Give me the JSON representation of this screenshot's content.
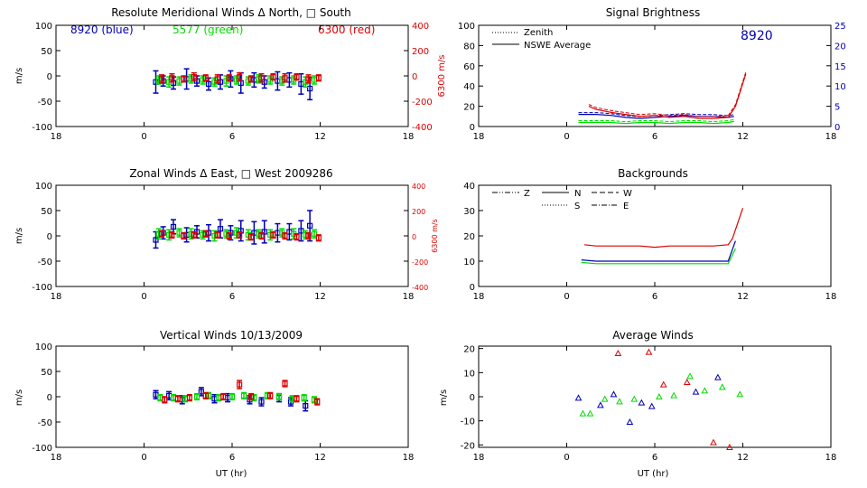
{
  "colors": {
    "blue": "#0000b4",
    "green": "#00dc00",
    "red": "#dc0000",
    "black": "#000000"
  },
  "chart_data": [
    {
      "type": "scatter",
      "title": "Resolute Meridional Winds Δ North, □ South",
      "xlabel": "",
      "ylabel": "m/s",
      "xlim": [
        -6,
        18
      ],
      "x_tick_labels": [
        "18",
        "0",
        "6",
        "12",
        "18"
      ],
      "ylim": [
        -100,
        100
      ],
      "y_ticks": [
        100,
        50,
        0,
        -50,
        -100
      ],
      "y2_ticks": [
        400,
        200,
        0,
        -200,
        -400
      ],
      "y2label": "6300 m/s",
      "legend_labels": [
        "8920 (blue)",
        "5577 (green)",
        "6300 (red)"
      ],
      "series": [
        {
          "name": "8920",
          "color": "blue",
          "x": [
            0.8,
            1.3,
            2.0,
            2.9,
            3.6,
            4.4,
            5.2,
            5.9,
            6.6,
            7.5,
            8.2,
            9.1,
            9.9,
            10.7,
            11.3
          ],
          "y": [
            -12,
            -10,
            -14,
            -6,
            -10,
            -16,
            -12,
            -6,
            -14,
            -8,
            -12,
            -10,
            -8,
            -16,
            -25
          ],
          "err": [
            22,
            10,
            12,
            20,
            10,
            12,
            14,
            16,
            20,
            14,
            12,
            18,
            14,
            20,
            22
          ]
        },
        {
          "name": "5577",
          "color": "green",
          "x": [
            1.0,
            1.7,
            2.4,
            3.2,
            4.0,
            4.8,
            5.6,
            6.3,
            7.1,
            7.8,
            8.6,
            9.4,
            10.2,
            11.0,
            11.6
          ],
          "y": [
            -8,
            -12,
            -10,
            -6,
            -8,
            -12,
            -10,
            -8,
            -10,
            -6,
            -8,
            -10,
            -8,
            -12,
            -8
          ],
          "err": [
            8,
            10,
            8,
            8,
            8,
            8,
            10,
            8,
            8,
            8,
            8,
            8,
            8,
            10,
            8
          ]
        },
        {
          "name": "6300",
          "color": "red",
          "x": [
            1.2,
            1.9,
            2.7,
            3.4,
            4.2,
            5.0,
            5.8,
            6.5,
            7.3,
            8.0,
            8.8,
            9.6,
            10.4,
            11.2,
            11.9
          ],
          "y": [
            -6,
            -4,
            -6,
            -2,
            -4,
            -6,
            -4,
            -2,
            -6,
            -4,
            -2,
            -4,
            -2,
            -6,
            -4
          ],
          "err": [
            8,
            8,
            6,
            8,
            6,
            8,
            6,
            8,
            6,
            8,
            6,
            8,
            6,
            8,
            6
          ]
        }
      ]
    },
    {
      "type": "line",
      "title": "Signal Brightness",
      "xlabel": "",
      "ylabel": "",
      "xlim": [
        -6,
        18
      ],
      "x_tick_labels": [
        "18",
        "0",
        "6",
        "12",
        "18"
      ],
      "ylim": [
        0,
        100
      ],
      "y_ticks": [
        100,
        80,
        60,
        40,
        20,
        0
      ],
      "y2_ticks": [
        25,
        20,
        15,
        10,
        5,
        0
      ],
      "legend": [
        "Zenith",
        "NSWE Average"
      ],
      "annotation": "8920",
      "series": [
        {
          "name": "8920",
          "color": "blue",
          "x": [
            0.8,
            2,
            3,
            4,
            5,
            6,
            7,
            8,
            9,
            10,
            11,
            11.4
          ],
          "y": [
            12,
            12,
            11,
            9,
            8,
            9,
            10,
            11,
            10,
            10,
            9,
            10
          ]
        },
        {
          "name": "5577",
          "color": "green",
          "x": [
            0.8,
            2,
            3,
            4,
            5,
            6,
            7,
            8,
            9,
            10,
            11,
            11.4
          ],
          "y": [
            4,
            4,
            4,
            3,
            4,
            4,
            3,
            4,
            4,
            3,
            4,
            5
          ]
        },
        {
          "name": "6300",
          "color": "red",
          "x": [
            1.5,
            2,
            3,
            4,
            5,
            6,
            7,
            8,
            9,
            10,
            11,
            11.5,
            12.2
          ],
          "y": [
            20,
            17,
            14,
            12,
            10,
            11,
            9,
            10,
            8,
            8,
            9,
            20,
            52
          ]
        }
      ]
    },
    {
      "type": "scatter",
      "title": "Zonal Winds Δ East, □ West 2009286",
      "xlabel": "",
      "ylabel": "m/s",
      "xlim": [
        -6,
        18
      ],
      "x_tick_labels": [
        "18",
        "0",
        "6",
        "12",
        "18"
      ],
      "ylim": [
        -100,
        100
      ],
      "y_ticks": [
        100,
        50,
        0,
        -50,
        -100
      ],
      "y2_ticks": [
        400,
        200,
        0,
        -200,
        -400
      ],
      "y2label": "6300 m/s",
      "series": [
        {
          "name": "8920",
          "color": "blue",
          "x": [
            0.8,
            1.3,
            2.0,
            2.9,
            3.6,
            4.4,
            5.2,
            5.9,
            6.6,
            7.5,
            8.2,
            9.1,
            9.9,
            10.7,
            11.3
          ],
          "y": [
            -8,
            6,
            18,
            2,
            8,
            6,
            14,
            6,
            10,
            6,
            8,
            6,
            8,
            10,
            20
          ],
          "err": [
            16,
            12,
            14,
            14,
            12,
            16,
            18,
            14,
            20,
            22,
            22,
            18,
            16,
            20,
            30
          ]
        },
        {
          "name": "5577",
          "color": "green",
          "x": [
            1.0,
            1.7,
            2.4,
            3.2,
            4.0,
            4.8,
            5.6,
            6.3,
            7.1,
            7.8,
            8.6,
            9.4,
            10.2,
            11.0,
            11.6
          ],
          "y": [
            4,
            2,
            6,
            4,
            2,
            0,
            4,
            6,
            2,
            4,
            2,
            6,
            4,
            2,
            4
          ],
          "err": [
            10,
            10,
            8,
            10,
            8,
            10,
            8,
            10,
            10,
            8,
            10,
            8,
            10,
            8,
            8
          ]
        },
        {
          "name": "6300",
          "color": "red",
          "x": [
            1.2,
            1.9,
            2.7,
            3.4,
            4.2,
            5.0,
            5.8,
            6.5,
            7.3,
            8.0,
            8.8,
            9.6,
            10.4,
            11.2,
            11.9
          ],
          "y": [
            4,
            2,
            0,
            2,
            4,
            2,
            0,
            2,
            -2,
            0,
            2,
            0,
            -2,
            0,
            -4
          ],
          "err": [
            6,
            6,
            6,
            6,
            6,
            6,
            6,
            6,
            6,
            6,
            6,
            6,
            6,
            6,
            6
          ]
        }
      ]
    },
    {
      "type": "line",
      "title": "Backgrounds",
      "xlabel": "",
      "ylabel": "",
      "xlim": [
        -6,
        18
      ],
      "x_tick_labels": [
        "18",
        "0",
        "6",
        "12",
        "18"
      ],
      "ylim": [
        0,
        40
      ],
      "y_ticks": [
        40,
        30,
        20,
        10,
        0
      ],
      "legend": [
        "Z",
        "N",
        "W",
        "S",
        "E"
      ],
      "series": [
        {
          "name": "8920",
          "color": "blue",
          "x": [
            1,
            2,
            3,
            4,
            5,
            6,
            7,
            8,
            9,
            10,
            11,
            11.5
          ],
          "y": [
            10.5,
            10,
            10,
            10,
            10,
            10,
            10,
            10,
            10,
            10,
            10,
            18
          ]
        },
        {
          "name": "5577",
          "color": "green",
          "x": [
            1,
            2,
            3,
            4,
            5,
            6,
            7,
            8,
            9,
            10,
            11,
            11.5
          ],
          "y": [
            9.5,
            9,
            9,
            9,
            9,
            9,
            9,
            9,
            9,
            9,
            9,
            15
          ]
        },
        {
          "name": "6300",
          "color": "red",
          "x": [
            1.2,
            2,
            3,
            4,
            5,
            6,
            7,
            8,
            9,
            10,
            11,
            11.3,
            12
          ],
          "y": [
            16.5,
            16,
            16,
            16,
            16,
            15.5,
            16,
            16,
            16,
            16,
            16.5,
            19,
            31
          ]
        }
      ]
    },
    {
      "type": "scatter",
      "title": "Vertical Winds 10/13/2009",
      "xlabel": "UT (hr)",
      "ylabel": "m/s",
      "xlim": [
        -6,
        18
      ],
      "x_tick_labels": [
        "18",
        "0",
        "6",
        "12",
        "18"
      ],
      "ylim": [
        -100,
        100
      ],
      "y_ticks": [
        100,
        50,
        0,
        -50,
        -100
      ],
      "series": [
        {
          "name": "8920",
          "color": "blue",
          "x": [
            0.8,
            1.7,
            2.6,
            3.9,
            4.8,
            5.7,
            7.2,
            8.0,
            9.2,
            10.0,
            11.0
          ],
          "y": [
            4,
            2,
            -6,
            10,
            -4,
            -2,
            -6,
            -10,
            -2,
            -10,
            -18
          ],
          "err": [
            8,
            8,
            8,
            8,
            8,
            8,
            8,
            8,
            8,
            8,
            10
          ]
        },
        {
          "name": "5577",
          "color": "green",
          "x": [
            1.1,
            2.0,
            2.8,
            3.6,
            4.4,
            5.1,
            6.0,
            6.8,
            7.5,
            8.4,
            9.2,
            10.1,
            10.9,
            11.6
          ],
          "y": [
            -2,
            -2,
            -4,
            0,
            2,
            -2,
            0,
            2,
            -2,
            2,
            0,
            -4,
            -2,
            -6
          ],
          "err": [
            6,
            6,
            6,
            6,
            6,
            6,
            6,
            6,
            6,
            6,
            6,
            6,
            6,
            6
          ]
        },
        {
          "name": "6300",
          "color": "red",
          "x": [
            1.4,
            2.3,
            3.1,
            4.2,
            5.4,
            6.5,
            7.3,
            8.6,
            9.6,
            10.4,
            11.8
          ],
          "y": [
            -6,
            -4,
            -2,
            2,
            0,
            24,
            0,
            2,
            26,
            -4,
            -10
          ],
          "err": [
            6,
            6,
            6,
            6,
            6,
            8,
            6,
            6,
            6,
            6,
            6
          ]
        }
      ]
    },
    {
      "type": "scatter",
      "title": "Average Winds",
      "xlabel": "UT (hr)",
      "ylabel": "m/s",
      "xlim": [
        -6,
        18
      ],
      "x_tick_labels": [
        "18",
        "0",
        "6",
        "12",
        "18"
      ],
      "ylim": [
        -21,
        21
      ],
      "y_ticks": [
        20,
        10,
        0,
        -10,
        -20
      ],
      "series": [
        {
          "name": "8920",
          "color": "blue",
          "x": [
            0.8,
            2.3,
            3.2,
            4.3,
            5.1,
            5.8,
            8.8,
            10.3
          ],
          "y": [
            -0.5,
            -3.5,
            1,
            -10.5,
            -2.5,
            -4,
            2,
            8
          ]
        },
        {
          "name": "5577",
          "color": "green",
          "x": [
            1.1,
            1.6,
            2.6,
            3.6,
            4.6,
            6.3,
            7.3,
            8.4,
            9.4,
            10.6,
            11.8
          ],
          "y": [
            -7,
            -7,
            -1,
            -2,
            -1,
            0,
            0.5,
            8.5,
            2.5,
            4,
            1
          ]
        },
        {
          "name": "6300",
          "color": "red",
          "x": [
            3.5,
            5.6,
            6.6,
            8.2,
            10.0,
            11.1
          ],
          "y": [
            18,
            18.5,
            5,
            6,
            -19,
            -21
          ]
        }
      ]
    }
  ]
}
